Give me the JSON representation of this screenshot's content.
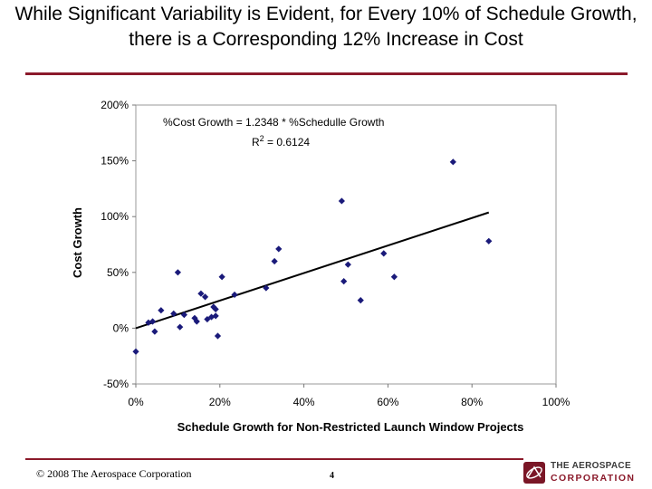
{
  "slide": {
    "title": "While Significant Variability is Evident, for Every 10% of Schedule Growth, there is a Corresponding 12% Increase in Cost",
    "copyright": "© 2008 The Aerospace Corporation",
    "page_number": "4",
    "logo_line1": "THE AEROSPACE",
    "logo_line2": "CORPORATION",
    "accent_color": "#8b1a2b"
  },
  "chart_data": {
    "type": "scatter",
    "title": "",
    "xlabel": "Schedule Growth for Non-Restricted Launch Window Projects",
    "ylabel": "Cost Growth",
    "xlim": [
      0,
      1.0
    ],
    "ylim": [
      -0.5,
      2.0
    ],
    "x_ticks": [
      0,
      0.2,
      0.4,
      0.6,
      0.8,
      1.0
    ],
    "x_tick_labels": [
      "0%",
      "20%",
      "40%",
      "60%",
      "80%",
      "100%"
    ],
    "y_ticks": [
      -0.5,
      0,
      0.5,
      1.0,
      1.5,
      2.0
    ],
    "y_tick_labels": [
      "-50%",
      "0%",
      "50%",
      "100%",
      "150%",
      "200%"
    ],
    "grid": false,
    "marker_color": "#1a1a7a",
    "annotations": {
      "equation": "%Cost Growth = 1.2348 * %Schedulle Growth",
      "r_squared_label": "R",
      "r_squared_sup": "2",
      "r_squared_value": " = 0.6124"
    },
    "trendline": {
      "slope": 1.2348,
      "intercept": 0,
      "x_range": [
        0,
        0.84
      ],
      "color": "#000000"
    },
    "points": [
      {
        "x": 0.0,
        "y": -0.21
      },
      {
        "x": 0.03,
        "y": 0.05
      },
      {
        "x": 0.04,
        "y": 0.06
      },
      {
        "x": 0.045,
        "y": -0.03
      },
      {
        "x": 0.06,
        "y": 0.16
      },
      {
        "x": 0.09,
        "y": 0.13
      },
      {
        "x": 0.1,
        "y": 0.5
      },
      {
        "x": 0.105,
        "y": 0.01
      },
      {
        "x": 0.115,
        "y": 0.12
      },
      {
        "x": 0.14,
        "y": 0.09
      },
      {
        "x": 0.145,
        "y": 0.06
      },
      {
        "x": 0.155,
        "y": 0.31
      },
      {
        "x": 0.165,
        "y": 0.28
      },
      {
        "x": 0.17,
        "y": 0.08
      },
      {
        "x": 0.18,
        "y": 0.1
      },
      {
        "x": 0.185,
        "y": 0.19
      },
      {
        "x": 0.19,
        "y": 0.11
      },
      {
        "x": 0.19,
        "y": 0.17
      },
      {
        "x": 0.195,
        "y": -0.07
      },
      {
        "x": 0.205,
        "y": 0.46
      },
      {
        "x": 0.235,
        "y": 0.3
      },
      {
        "x": 0.31,
        "y": 0.36
      },
      {
        "x": 0.33,
        "y": 0.6
      },
      {
        "x": 0.34,
        "y": 0.71
      },
      {
        "x": 0.49,
        "y": 1.14
      },
      {
        "x": 0.495,
        "y": 0.42
      },
      {
        "x": 0.505,
        "y": 0.57
      },
      {
        "x": 0.535,
        "y": 0.25
      },
      {
        "x": 0.59,
        "y": 0.67
      },
      {
        "x": 0.615,
        "y": 0.46
      },
      {
        "x": 0.755,
        "y": 1.49
      },
      {
        "x": 0.84,
        "y": 0.78
      }
    ]
  }
}
